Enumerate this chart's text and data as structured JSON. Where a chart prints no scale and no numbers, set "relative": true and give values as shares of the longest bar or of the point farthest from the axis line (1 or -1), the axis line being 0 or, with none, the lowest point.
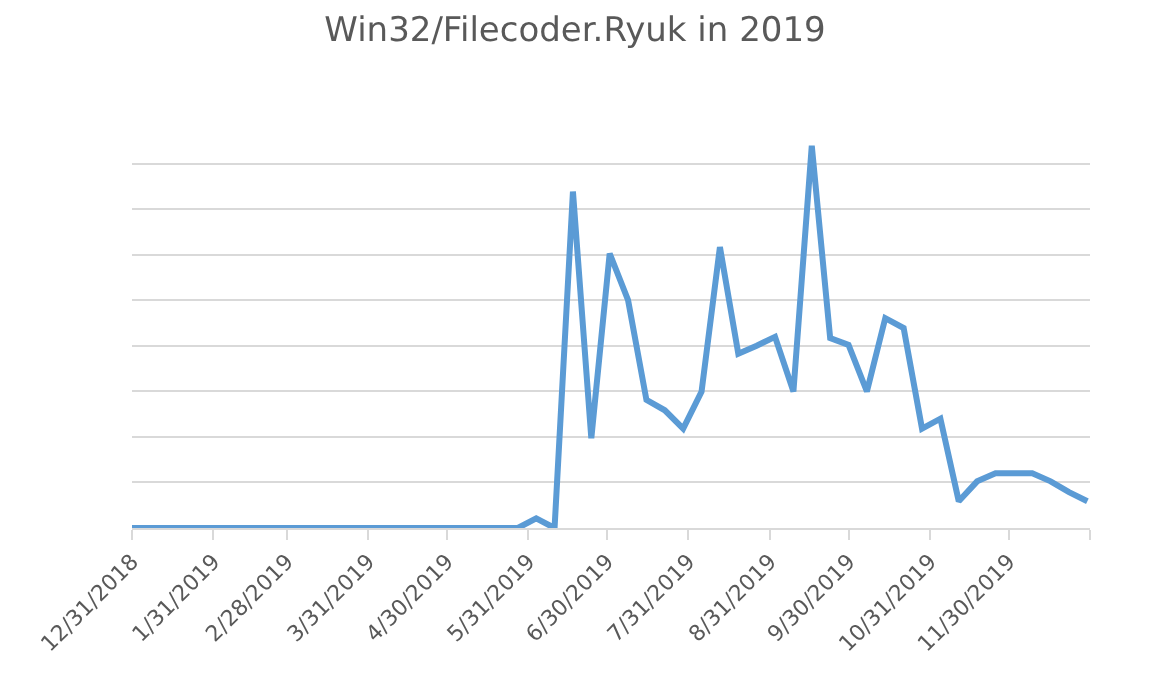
{
  "chart_data": {
    "type": "line",
    "title": "Win32/Filecoder.Ryuk in 2019",
    "relative": true,
    "grid": "y",
    "marker": "none",
    "line_style": "solid",
    "xlim": [
      "2018-12-31",
      "2019-12-31"
    ],
    "xticks": [
      {
        "value": "2018-12-31",
        "label": "12/31/2018"
      },
      {
        "value": "2019-01-31",
        "label": "1/31/2019"
      },
      {
        "value": "2019-02-28",
        "label": "2/28/2019"
      },
      {
        "value": "2019-03-31",
        "label": "3/31/2019"
      },
      {
        "value": "2019-04-30",
        "label": "4/30/2019"
      },
      {
        "value": "2019-05-31",
        "label": "5/31/2019"
      },
      {
        "value": "2019-06-30",
        "label": "6/30/2019"
      },
      {
        "value": "2019-07-31",
        "label": "7/31/2019"
      },
      {
        "value": "2019-08-31",
        "label": "8/31/2019"
      },
      {
        "value": "2019-09-30",
        "label": "9/30/2019"
      },
      {
        "value": "2019-10-31",
        "label": "10/31/2019"
      },
      {
        "value": "2019-11-30",
        "label": "11/30/2019"
      },
      {
        "value": "2019-12-31",
        "label": null
      }
    ],
    "x": [
      "2018-12-31",
      "2019-01-07",
      "2019-01-14",
      "2019-01-21",
      "2019-01-28",
      "2019-02-04",
      "2019-02-11",
      "2019-02-18",
      "2019-02-25",
      "2019-03-04",
      "2019-03-11",
      "2019-03-18",
      "2019-03-25",
      "2019-04-01",
      "2019-04-08",
      "2019-04-15",
      "2019-04-22",
      "2019-04-29",
      "2019-05-06",
      "2019-05-13",
      "2019-05-20",
      "2019-05-27",
      "2019-06-03",
      "2019-06-10",
      "2019-06-17",
      "2019-06-24",
      "2019-07-01",
      "2019-07-08",
      "2019-07-15",
      "2019-07-22",
      "2019-07-29",
      "2019-08-05",
      "2019-08-12",
      "2019-08-19",
      "2019-08-26",
      "2019-09-02",
      "2019-09-09",
      "2019-09-16",
      "2019-09-23",
      "2019-09-30",
      "2019-10-07",
      "2019-10-14",
      "2019-10-21",
      "2019-10-28",
      "2019-11-04",
      "2019-11-11",
      "2019-11-18",
      "2019-11-25",
      "2019-12-02",
      "2019-12-09",
      "2019-12-16",
      "2019-12-23",
      "2019-12-30"
    ],
    "series": [
      {
        "color": "#5b9bd5",
        "values": [
          0,
          0,
          0,
          0,
          0,
          0,
          0,
          0,
          0,
          0,
          0,
          0,
          0,
          0,
          0,
          0,
          0,
          0,
          0,
          0,
          0,
          0,
          0.025,
          0,
          0.88,
          0.235,
          0.718,
          0.596,
          0.335,
          0.308,
          0.26,
          0.357,
          0.735,
          0.456,
          0.477,
          0.5,
          0.357,
          1,
          0.497,
          0.479,
          0.357,
          0.549,
          0.523,
          0.26,
          0.286,
          0.07,
          0.122,
          0.143,
          0.143,
          0.143,
          0.122,
          0.094,
          0.07
        ]
      }
    ]
  }
}
